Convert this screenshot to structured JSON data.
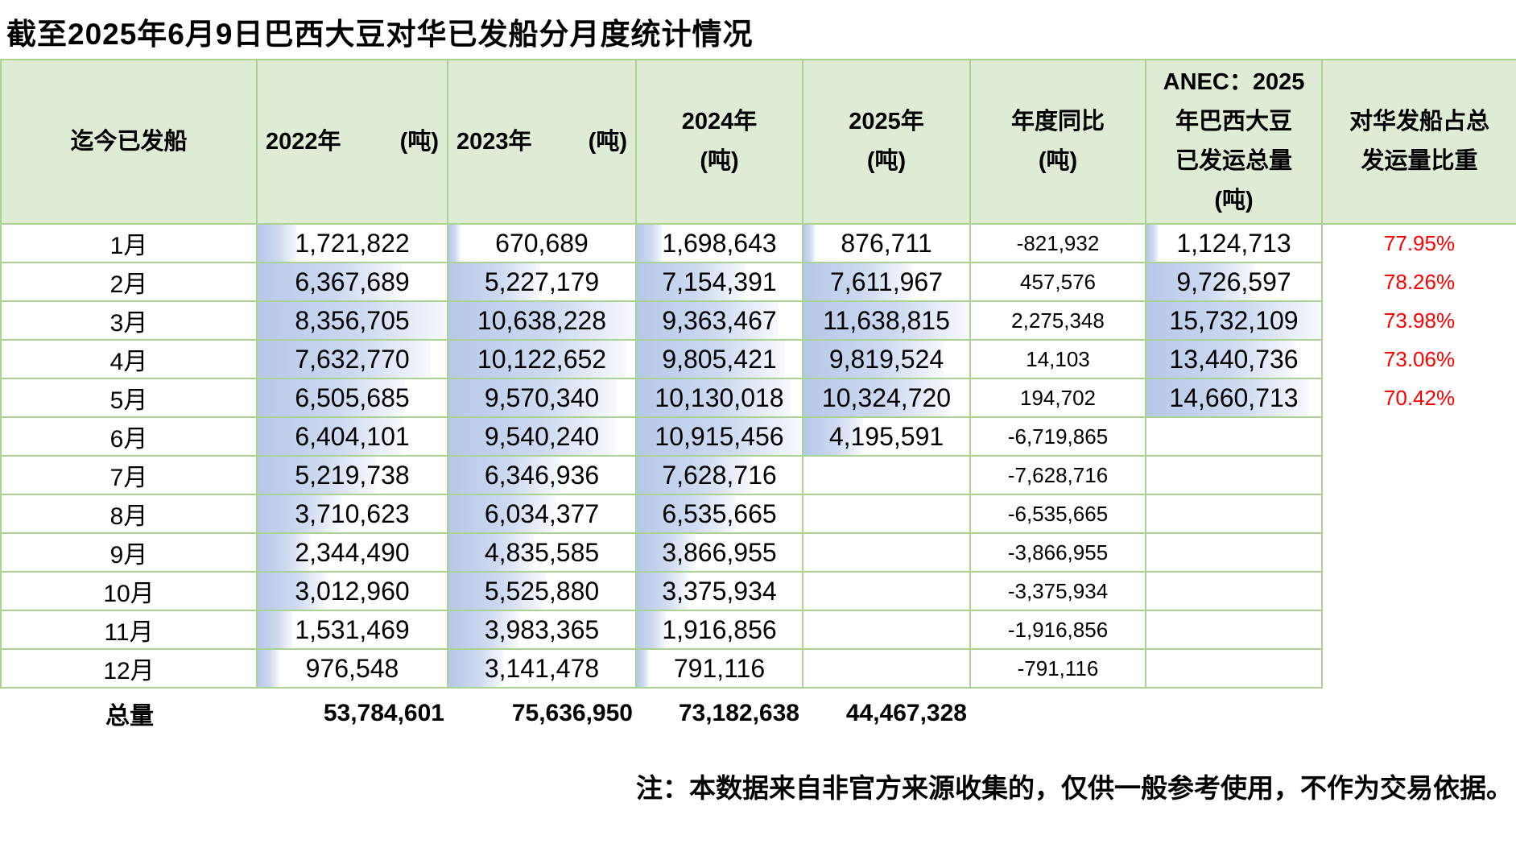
{
  "title": "截至2025年6月9日巴西大豆对华已发船分月度统计情况",
  "note": "注：本数据来自非官方来源收集的，仅供一般参考使用，不作为交易依据。",
  "colors": {
    "header_bg": "#dfecd5",
    "border": "#abd295",
    "bar_from": "#b6c8e8",
    "bar_to": "#f7f9fd",
    "percent": "#ff0000"
  },
  "table": {
    "headers": {
      "month": "迄今已发船",
      "y2022": {
        "year": "2022年",
        "unit": "(吨)"
      },
      "y2023": {
        "year": "2023年",
        "unit": "(吨)"
      },
      "y2024": {
        "lines": [
          "2024年",
          "(吨)"
        ]
      },
      "y2025": {
        "lines": [
          "2025年",
          "(吨)"
        ]
      },
      "yoy": {
        "lines": [
          "年度同比",
          "(吨)"
        ]
      },
      "anec": {
        "lines": [
          "ANEC：2025",
          "年巴西大豆",
          "已发运总量",
          "(吨)"
        ]
      },
      "share": {
        "lines": [
          "对华发船占总",
          "发运量比重"
        ]
      }
    },
    "rows": [
      {
        "month": "1月",
        "y2022": "1,721,822",
        "y2023": "670,689",
        "y2024": "1,698,643",
        "y2025": "876,711",
        "yoy": "-821,932",
        "anec": "1,124,713",
        "share": "77.95%"
      },
      {
        "month": "2月",
        "y2022": "6,367,689",
        "y2023": "5,227,179",
        "y2024": "7,154,391",
        "y2025": "7,611,967",
        "yoy": "457,576",
        "anec": "9,726,597",
        "share": "78.26%"
      },
      {
        "month": "3月",
        "y2022": "8,356,705",
        "y2023": "10,638,228",
        "y2024": "9,363,467",
        "y2025": "11,638,815",
        "yoy": "2,275,348",
        "anec": "15,732,109",
        "share": "73.98%"
      },
      {
        "month": "4月",
        "y2022": "7,632,770",
        "y2023": "10,122,652",
        "y2024": "9,805,421",
        "y2025": "9,819,524",
        "yoy": "14,103",
        "anec": "13,440,736",
        "share": "73.06%"
      },
      {
        "month": "5月",
        "y2022": "6,505,685",
        "y2023": "9,570,340",
        "y2024": "10,130,018",
        "y2025": "10,324,720",
        "yoy": "194,702",
        "anec": "14,660,713",
        "share": "70.42%"
      },
      {
        "month": "6月",
        "y2022": "6,404,101",
        "y2023": "9,540,240",
        "y2024": "10,915,456",
        "y2025": "4,195,591",
        "yoy": "-6,719,865",
        "anec": "",
        "share": ""
      },
      {
        "month": "7月",
        "y2022": "5,219,738",
        "y2023": "6,346,936",
        "y2024": "7,628,716",
        "y2025": "",
        "yoy": "-7,628,716",
        "anec": "",
        "share": ""
      },
      {
        "month": "8月",
        "y2022": "3,710,623",
        "y2023": "6,034,377",
        "y2024": "6,535,665",
        "y2025": "",
        "yoy": "-6,535,665",
        "anec": "",
        "share": ""
      },
      {
        "month": "9月",
        "y2022": "2,344,490",
        "y2023": "4,835,585",
        "y2024": "3,866,955",
        "y2025": "",
        "yoy": "-3,866,955",
        "anec": "",
        "share": ""
      },
      {
        "month": "10月",
        "y2022": "3,012,960",
        "y2023": "5,525,880",
        "y2024": "3,375,934",
        "y2025": "",
        "yoy": "-3,375,934",
        "anec": "",
        "share": ""
      },
      {
        "month": "11月",
        "y2022": "1,531,469",
        "y2023": "3,983,365",
        "y2024": "1,916,856",
        "y2025": "",
        "yoy": "-1,916,856",
        "anec": "",
        "share": ""
      },
      {
        "month": "12月",
        "y2022": "976,548",
        "y2023": "3,141,478",
        "y2024": "791,116",
        "y2025": "",
        "yoy": "-791,116",
        "anec": "",
        "share": ""
      }
    ],
    "totals": {
      "label": "总量",
      "y2022": "53,784,601",
      "y2023": "75,636,950",
      "y2024": "73,182,638",
      "y2025": "44,467,328"
    }
  }
}
